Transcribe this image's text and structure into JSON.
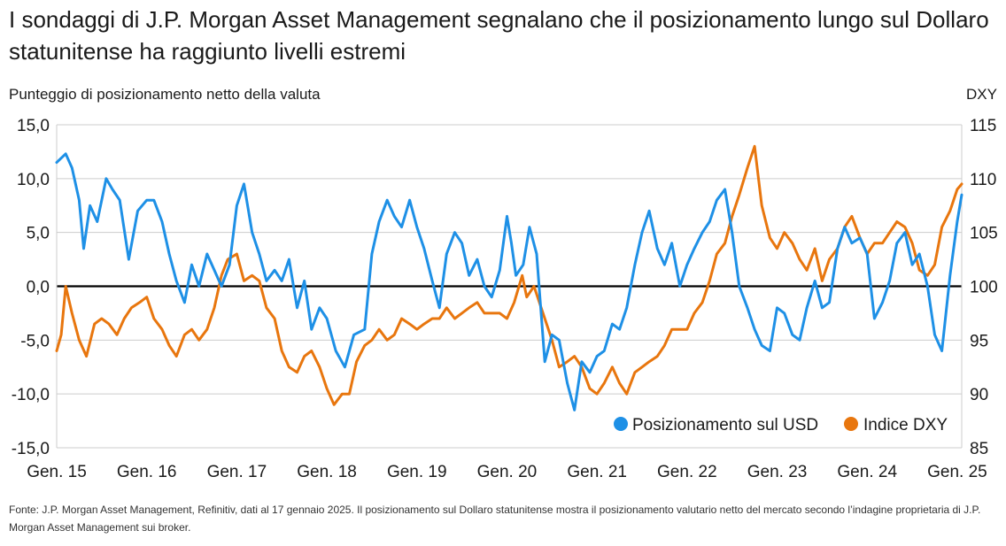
{
  "title": "I sondaggi di J.P. Morgan Asset Management segnalano che il posizionamento lungo sul Dollaro statunitense ha raggiunto livelli estremi",
  "source": "Fonte: J.P. Morgan Asset Management, Refinitiv, dati al 17 gennaio 2025. Il posizionamento sul Dollaro statunitense mostra il posizionamento valutario netto del mercato secondo l’indagine proprietaria di J.P. Morgan Asset Management sui broker.",
  "colors": {
    "usd": "#1E90E6",
    "dxy": "#E8760E",
    "grid": "#cccccc",
    "zero": "#000000"
  },
  "chart_data": {
    "type": "line",
    "ylabel_left": "Punteggio di posizionamento netto della valuta",
    "ylabel_right": "DXY",
    "ylim_left": [
      -15,
      15
    ],
    "ylim_right": [
      85,
      115
    ],
    "xlim": [
      2015.0,
      2025.05
    ],
    "left_ticks": [
      "15,0",
      "10,0",
      "5,0",
      "0,0",
      "-5,0",
      "-10,0",
      "-15,0"
    ],
    "right_ticks": [
      "115",
      "110",
      "105",
      "100",
      "95",
      "90",
      "85"
    ],
    "x_ticks": [
      "Gen. 15",
      "Gen. 16",
      "Gen. 17",
      "Gen. 18",
      "Gen. 19",
      "Gen. 20",
      "Gen. 21",
      "Gen. 22",
      "Gen. 23",
      "Gen. 24",
      "Gen. 25"
    ],
    "grid": "horizontal",
    "legend_position": "bottom-right",
    "series": [
      {
        "name": "Posizionamento sul USD",
        "axis": "left",
        "x": [
          2015.0,
          2015.1,
          2015.17,
          2015.25,
          2015.3,
          2015.37,
          2015.45,
          2015.55,
          2015.62,
          2015.7,
          2015.8,
          2015.9,
          2016.0,
          2016.08,
          2016.17,
          2016.25,
          2016.33,
          2016.42,
          2016.5,
          2016.58,
          2016.67,
          2016.75,
          2016.83,
          2016.92,
          2017.0,
          2017.08,
          2017.17,
          2017.25,
          2017.33,
          2017.42,
          2017.5,
          2017.58,
          2017.67,
          2017.75,
          2017.83,
          2017.92,
          2018.0,
          2018.1,
          2018.2,
          2018.3,
          2018.42,
          2018.5,
          2018.58,
          2018.67,
          2018.75,
          2018.83,
          2018.92,
          2019.0,
          2019.08,
          2019.17,
          2019.25,
          2019.33,
          2019.42,
          2019.5,
          2019.58,
          2019.67,
          2019.75,
          2019.83,
          2019.92,
          2020.0,
          2020.05,
          2020.1,
          2020.18,
          2020.25,
          2020.33,
          2020.42,
          2020.5,
          2020.58,
          2020.67,
          2020.75,
          2020.83,
          2020.92,
          2021.0,
          2021.08,
          2021.17,
          2021.25,
          2021.33,
          2021.42,
          2021.5,
          2021.58,
          2021.67,
          2021.75,
          2021.83,
          2021.92,
          2022.0,
          2022.08,
          2022.17,
          2022.25,
          2022.33,
          2022.42,
          2022.5,
          2022.58,
          2022.67,
          2022.75,
          2022.83,
          2022.92,
          2023.0,
          2023.08,
          2023.17,
          2023.25,
          2023.33,
          2023.42,
          2023.5,
          2023.58,
          2023.67,
          2023.75,
          2023.83,
          2023.92,
          2024.0,
          2024.08,
          2024.17,
          2024.25,
          2024.33,
          2024.42,
          2024.5,
          2024.58,
          2024.67,
          2024.75,
          2024.83,
          2024.92,
          2025.0,
          2025.05
        ],
        "y": [
          11.5,
          12.3,
          11.0,
          8.0,
          3.5,
          7.5,
          6.0,
          10.0,
          9.0,
          8.0,
          2.5,
          7.0,
          8.0,
          8.0,
          6.0,
          3.0,
          0.5,
          -1.5,
          2.0,
          0.0,
          3.0,
          1.5,
          0.0,
          2.0,
          7.5,
          9.5,
          5.0,
          3.0,
          0.5,
          1.5,
          0.5,
          2.5,
          -2.0,
          0.5,
          -4.0,
          -2.0,
          -3.0,
          -6.0,
          -7.5,
          -4.5,
          -4.0,
          3.0,
          6.0,
          8.0,
          6.5,
          5.5,
          8.0,
          5.5,
          3.5,
          0.5,
          -2.0,
          3.0,
          5.0,
          4.0,
          1.0,
          2.5,
          0.0,
          -1.0,
          1.5,
          6.5,
          4.0,
          1.0,
          2.0,
          5.5,
          3.0,
          -7.0,
          -4.5,
          -5.0,
          -9.0,
          -11.5,
          -7.0,
          -8.0,
          -6.5,
          -6.0,
          -3.5,
          -4.0,
          -2.0,
          2.0,
          5.0,
          7.0,
          3.5,
          2.0,
          4.0,
          0.0,
          2.0,
          3.5,
          5.0,
          6.0,
          8.0,
          9.0,
          5.0,
          0.0,
          -2.0,
          -4.0,
          -5.5,
          -6.0,
          -2.0,
          -2.5,
          -4.5,
          -5.0,
          -2.0,
          0.5,
          -2.0,
          -1.5,
          3.5,
          5.5,
          4.0,
          4.5,
          3.0,
          -3.0,
          -1.5,
          0.5,
          4.0,
          5.0,
          2.0,
          3.0,
          0.0,
          -4.5,
          -6.0,
          1.0,
          6.0,
          8.5
        ]
      },
      {
        "name": "Indice DXY",
        "axis": "right",
        "x": [
          2015.0,
          2015.05,
          2015.1,
          2015.17,
          2015.25,
          2015.33,
          2015.42,
          2015.5,
          2015.58,
          2015.67,
          2015.75,
          2015.83,
          2015.92,
          2016.0,
          2016.08,
          2016.17,
          2016.25,
          2016.33,
          2016.42,
          2016.5,
          2016.58,
          2016.67,
          2016.75,
          2016.83,
          2016.9,
          2017.0,
          2017.08,
          2017.17,
          2017.25,
          2017.33,
          2017.42,
          2017.5,
          2017.58,
          2017.67,
          2017.75,
          2017.83,
          2017.92,
          2018.0,
          2018.08,
          2018.17,
          2018.25,
          2018.33,
          2018.42,
          2018.5,
          2018.58,
          2018.67,
          2018.75,
          2018.83,
          2018.92,
          2019.0,
          2019.08,
          2019.17,
          2019.25,
          2019.33,
          2019.42,
          2019.5,
          2019.58,
          2019.67,
          2019.75,
          2019.83,
          2019.92,
          2020.0,
          2020.08,
          2020.17,
          2020.22,
          2020.3,
          2020.42,
          2020.5,
          2020.58,
          2020.67,
          2020.75,
          2020.83,
          2020.92,
          2021.0,
          2021.08,
          2021.17,
          2021.25,
          2021.33,
          2021.42,
          2021.5,
          2021.58,
          2021.67,
          2021.75,
          2021.83,
          2021.92,
          2022.0,
          2022.08,
          2022.17,
          2022.25,
          2022.33,
          2022.42,
          2022.5,
          2022.58,
          2022.67,
          2022.75,
          2022.83,
          2022.92,
          2023.0,
          2023.08,
          2023.17,
          2023.25,
          2023.33,
          2023.42,
          2023.5,
          2023.58,
          2023.67,
          2023.75,
          2023.83,
          2023.92,
          2024.0,
          2024.08,
          2024.17,
          2024.25,
          2024.33,
          2024.42,
          2024.5,
          2024.58,
          2024.67,
          2024.75,
          2024.83,
          2024.92,
          2025.0,
          2025.05
        ],
        "y": [
          94.0,
          95.5,
          100.0,
          97.5,
          95.0,
          93.5,
          96.5,
          97.0,
          96.5,
          95.5,
          97.0,
          98.0,
          98.5,
          99.0,
          97.0,
          96.0,
          94.5,
          93.5,
          95.5,
          96.0,
          95.0,
          96.0,
          98.0,
          101.0,
          102.5,
          103.0,
          100.5,
          101.0,
          100.5,
          98.0,
          97.0,
          94.0,
          92.5,
          92.0,
          93.5,
          94.0,
          92.5,
          90.5,
          89.0,
          90.0,
          90.0,
          93.0,
          94.5,
          95.0,
          96.0,
          95.0,
          95.5,
          97.0,
          96.5,
          96.0,
          96.5,
          97.0,
          97.0,
          98.0,
          97.0,
          97.5,
          98.0,
          98.5,
          97.5,
          97.5,
          97.5,
          97.0,
          98.5,
          101.0,
          99.0,
          100.0,
          97.0,
          95.0,
          92.5,
          93.0,
          93.5,
          92.5,
          90.5,
          90.0,
          91.0,
          92.5,
          91.0,
          90.0,
          92.0,
          92.5,
          93.0,
          93.5,
          94.5,
          96.0,
          96.0,
          96.0,
          97.5,
          98.5,
          100.5,
          103.0,
          104.0,
          106.5,
          108.5,
          111.0,
          113.0,
          107.5,
          104.5,
          103.5,
          105.0,
          104.0,
          102.5,
          101.5,
          103.5,
          100.5,
          102.5,
          103.5,
          105.5,
          106.5,
          104.5,
          103.0,
          104.0,
          104.0,
          105.0,
          106.0,
          105.5,
          104.0,
          101.5,
          101.0,
          102.0,
          105.5,
          107.0,
          109.0,
          109.5
        ]
      }
    ]
  }
}
